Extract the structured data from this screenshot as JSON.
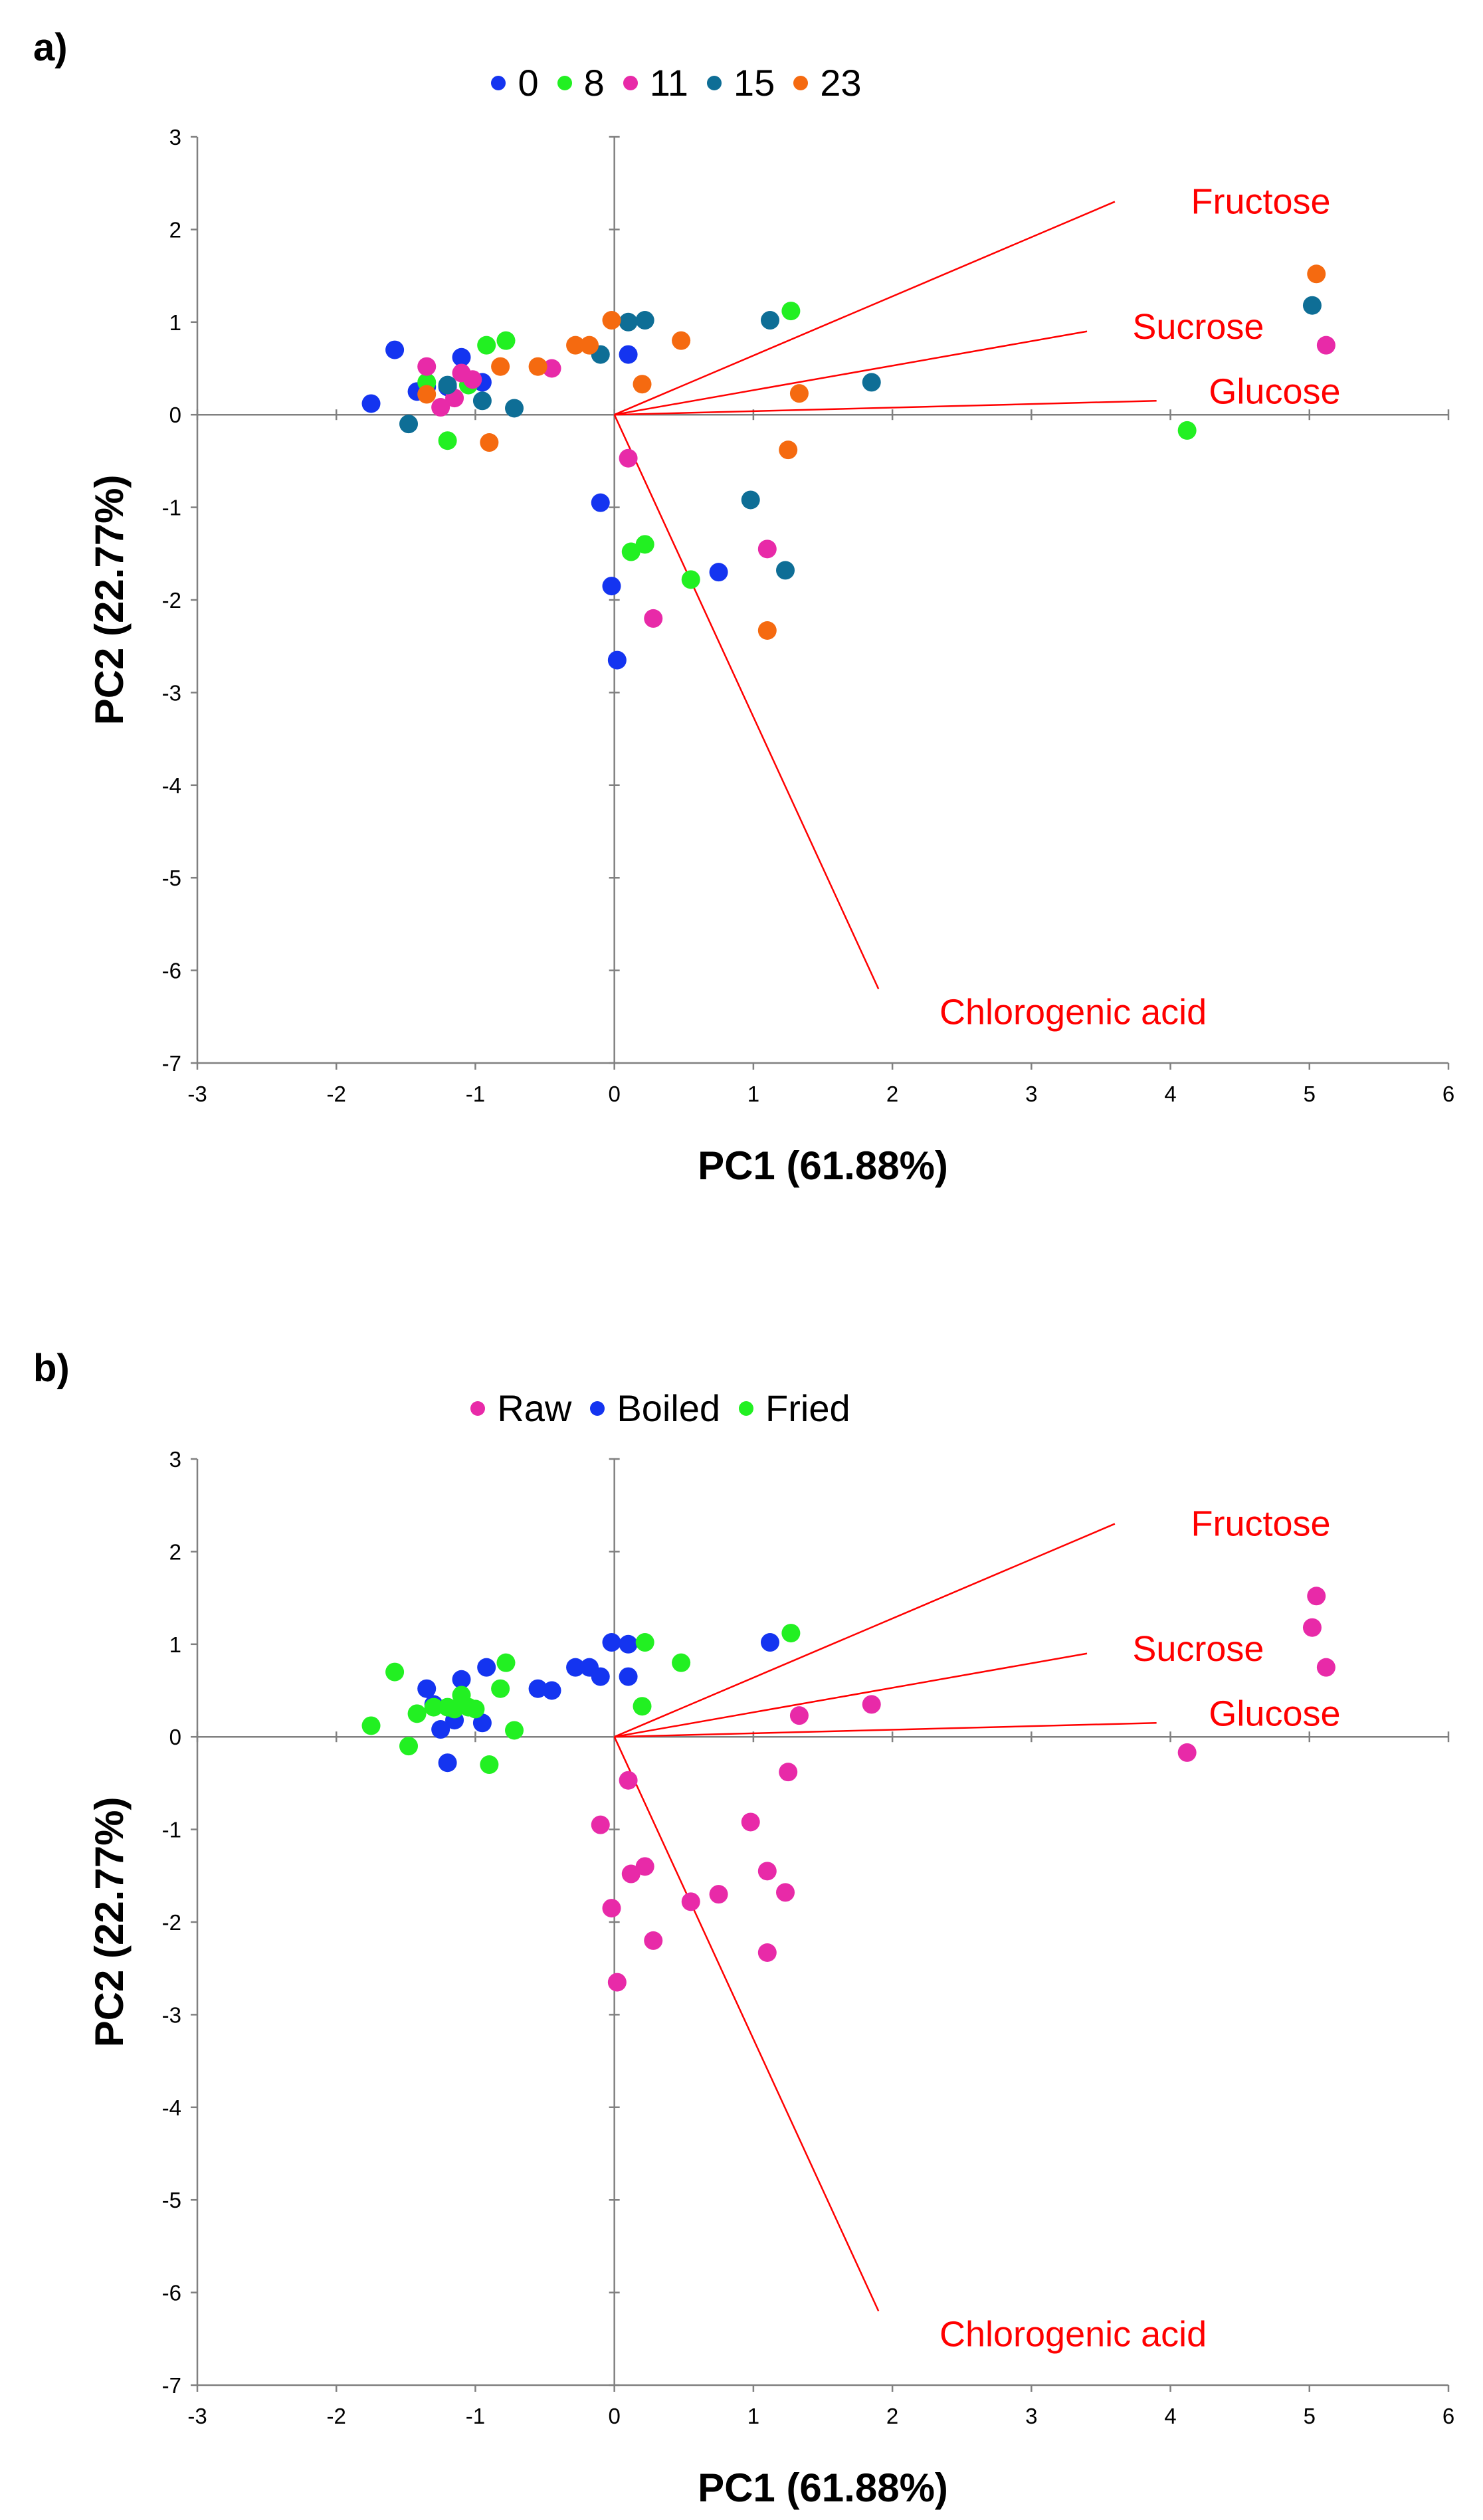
{
  "figure": {
    "panel_a_label": "a)",
    "panel_b_label": "b)"
  },
  "colors": {
    "0": "#1434f0",
    "8": "#22f022",
    "11": "#e82aa8",
    "15": "#0e6e96",
    "23": "#f56a10",
    "Raw": "#e82aa8",
    "Boiled": "#1434f0",
    "Fried": "#22f022",
    "loading": "#ff0000",
    "axis": "#808080"
  },
  "chart_data": [
    {
      "type": "scatter",
      "panel": "a)",
      "title": "",
      "xlabel": "PC1 (61.88%)",
      "ylabel": "PC2 (22.77%)",
      "xlim": [
        -3,
        6
      ],
      "ylim": [
        -7,
        3
      ],
      "xticks": [
        "-3",
        "-2",
        "-1",
        "0",
        "1",
        "2",
        "3",
        "4",
        "5",
        "6"
      ],
      "yticks": [
        "3",
        "2",
        "1",
        "0",
        "-1",
        "-2",
        "-3",
        "-4",
        "-5",
        "-6",
        "-7"
      ],
      "legend": [
        "0",
        "8",
        "11",
        "15",
        "23"
      ],
      "loadings": [
        {
          "name": "Fructose",
          "x": 3.6,
          "y": 2.3
        },
        {
          "name": "Sucrose",
          "x": 3.4,
          "y": 0.9
        },
        {
          "name": "Glucose",
          "x": 3.9,
          "y": 0.15
        },
        {
          "name": "Chlorogenic acid",
          "x": 1.9,
          "y": -6.2
        }
      ],
      "loading_labels": [
        {
          "name": "Fructose",
          "x": 4.65,
          "y": 2.3
        },
        {
          "name": "Sucrose",
          "x": 4.2,
          "y": 0.95
        },
        {
          "name": "Glucose",
          "x": 4.75,
          "y": 0.25
        },
        {
          "name": "Chlorogenic acid",
          "x": 3.3,
          "y": -6.45
        }
      ],
      "series": [
        {
          "name": "0",
          "points": [
            [
              -1.75,
              0.12
            ],
            [
              -1.58,
              0.7
            ],
            [
              -1.42,
              0.25
            ],
            [
              -1.35,
              0.3
            ],
            [
              -1.1,
              0.62
            ],
            [
              -1.2,
              0.3
            ],
            [
              -0.95,
              0.35
            ],
            [
              -0.1,
              -0.95
            ],
            [
              -0.02,
              -1.85
            ],
            [
              0.02,
              -2.65
            ],
            [
              0.1,
              0.65
            ],
            [
              0.75,
              -1.7
            ]
          ]
        },
        {
          "name": "8",
          "points": [
            [
              -1.35,
              0.35
            ],
            [
              -1.2,
              -0.28
            ],
            [
              -1.05,
              0.32
            ],
            [
              -0.92,
              0.75
            ],
            [
              -0.78,
              0.8
            ],
            [
              0.12,
              -1.48
            ],
            [
              0.22,
              -1.4
            ],
            [
              0.55,
              -1.78
            ],
            [
              1.27,
              1.12
            ],
            [
              4.12,
              -0.17
            ]
          ]
        },
        {
          "name": "11",
          "points": [
            [
              -1.35,
              0.52
            ],
            [
              -1.25,
              0.08
            ],
            [
              -1.15,
              0.18
            ],
            [
              -1.1,
              0.45
            ],
            [
              -1.02,
              0.38
            ],
            [
              -0.45,
              0.5
            ],
            [
              0.1,
              -0.47
            ],
            [
              0.28,
              -2.2
            ],
            [
              1.1,
              -1.45
            ],
            [
              5.12,
              0.75
            ]
          ]
        },
        {
          "name": "15",
          "points": [
            [
              -1.48,
              -0.1
            ],
            [
              -1.2,
              0.32
            ],
            [
              -0.95,
              0.15
            ],
            [
              -0.72,
              0.07
            ],
            [
              -0.1,
              0.65
            ],
            [
              0.1,
              1.0
            ],
            [
              0.22,
              1.02
            ],
            [
              1.12,
              1.02
            ],
            [
              0.98,
              -0.92
            ],
            [
              1.23,
              -1.68
            ],
            [
              1.85,
              0.35
            ],
            [
              5.02,
              1.18
            ]
          ]
        },
        {
          "name": "23",
          "points": [
            [
              -1.35,
              0.22
            ],
            [
              -0.9,
              -0.3
            ],
            [
              -0.82,
              0.52
            ],
            [
              -0.55,
              0.52
            ],
            [
              -0.28,
              0.75
            ],
            [
              -0.18,
              0.75
            ],
            [
              -0.02,
              1.02
            ],
            [
              0.2,
              0.33
            ],
            [
              0.48,
              0.8
            ],
            [
              1.1,
              -2.33
            ],
            [
              1.25,
              -0.38
            ],
            [
              1.33,
              0.23
            ],
            [
              5.05,
              1.52
            ]
          ]
        }
      ]
    },
    {
      "type": "scatter",
      "panel": "b)",
      "title": "",
      "xlabel": "PC1 (61.88%)",
      "ylabel": "PC2 (22.77%)",
      "xlim": [
        -3,
        6
      ],
      "ylim": [
        -7,
        3
      ],
      "xticks": [
        "-3",
        "-2",
        "-1",
        "0",
        "1",
        "2",
        "3",
        "4",
        "5",
        "6"
      ],
      "yticks": [
        "3",
        "2",
        "1",
        "0",
        "-1",
        "-2",
        "-3",
        "-4",
        "-5",
        "-6",
        "-7"
      ],
      "legend": [
        "Raw",
        "Boiled",
        "Fried"
      ],
      "loadings": [
        {
          "name": "Fructose",
          "x": 3.6,
          "y": 2.3
        },
        {
          "name": "Sucrose",
          "x": 3.4,
          "y": 0.9
        },
        {
          "name": "Glucose",
          "x": 3.9,
          "y": 0.15
        },
        {
          "name": "Chlorogenic acid",
          "x": 1.9,
          "y": -6.2
        }
      ],
      "loading_labels": [
        {
          "name": "Fructose",
          "x": 4.65,
          "y": 2.3
        },
        {
          "name": "Sucrose",
          "x": 4.2,
          "y": 0.95
        },
        {
          "name": "Glucose",
          "x": 4.75,
          "y": 0.25
        },
        {
          "name": "Chlorogenic acid",
          "x": 3.3,
          "y": -6.45
        }
      ],
      "series": [
        {
          "name": "Raw",
          "points": [
            [
              -0.1,
              -0.95
            ],
            [
              0.1,
              -0.47
            ],
            [
              0.12,
              -1.48
            ],
            [
              0.22,
              -1.4
            ],
            [
              -0.02,
              -1.85
            ],
            [
              0.02,
              -2.65
            ],
            [
              0.28,
              -2.2
            ],
            [
              0.55,
              -1.78
            ],
            [
              0.75,
              -1.7
            ],
            [
              0.98,
              -0.92
            ],
            [
              1.1,
              -1.45
            ],
            [
              1.1,
              -2.33
            ],
            [
              1.23,
              -1.68
            ],
            [
              1.25,
              -0.38
            ],
            [
              1.33,
              0.23
            ],
            [
              1.85,
              0.35
            ],
            [
              4.12,
              -0.17
            ],
            [
              5.02,
              1.18
            ],
            [
              5.05,
              1.52
            ],
            [
              5.12,
              0.75
            ]
          ]
        },
        {
          "name": "Boiled",
          "points": [
            [
              -1.35,
              0.52
            ],
            [
              -1.25,
              0.08
            ],
            [
              -1.2,
              -0.28
            ],
            [
              -1.15,
              0.18
            ],
            [
              -1.1,
              0.62
            ],
            [
              -1.3,
              0.35
            ],
            [
              -0.95,
              0.15
            ],
            [
              -0.92,
              0.75
            ],
            [
              -0.55,
              0.52
            ],
            [
              -0.45,
              0.5
            ],
            [
              -0.28,
              0.75
            ],
            [
              -0.18,
              0.75
            ],
            [
              -0.1,
              0.65
            ],
            [
              -0.02,
              1.02
            ],
            [
              0.1,
              1.0
            ],
            [
              0.1,
              0.65
            ],
            [
              1.12,
              1.02
            ]
          ]
        },
        {
          "name": "Fried",
          "points": [
            [
              -1.75,
              0.12
            ],
            [
              -1.58,
              0.7
            ],
            [
              -1.48,
              -0.1
            ],
            [
              -1.42,
              0.25
            ],
            [
              -1.3,
              0.32
            ],
            [
              -1.2,
              0.32
            ],
            [
              -1.15,
              0.3
            ],
            [
              -1.1,
              0.45
            ],
            [
              -1.05,
              0.32
            ],
            [
              -1.0,
              0.3
            ],
            [
              -0.9,
              -0.3
            ],
            [
              -0.82,
              0.52
            ],
            [
              -0.78,
              0.8
            ],
            [
              -0.72,
              0.07
            ],
            [
              0.2,
              0.33
            ],
            [
              0.22,
              1.02
            ],
            [
              0.48,
              0.8
            ],
            [
              1.27,
              1.12
            ]
          ]
        }
      ]
    }
  ]
}
